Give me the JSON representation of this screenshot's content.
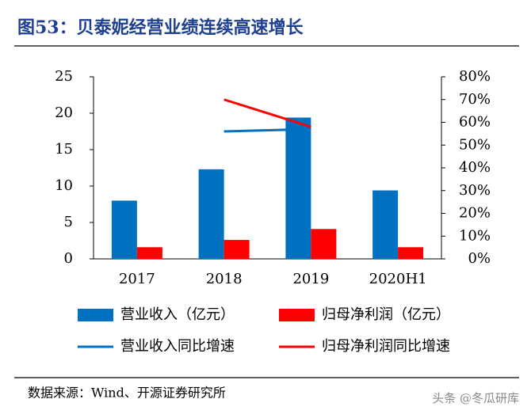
{
  "chart_data": {
    "type": "combo",
    "title": "图53：贝泰妮经营业绩连续高速增长",
    "categories": [
      "2017",
      "2018",
      "2019",
      "2020H1"
    ],
    "series": [
      {
        "name": "营业收入（亿元）",
        "type": "bar",
        "color": "#0070c0",
        "values": [
          8.0,
          12.3,
          19.4,
          9.4
        ]
      },
      {
        "name": "归母净利润（亿元）",
        "type": "bar",
        "color": "#ff0000",
        "values": [
          1.6,
          2.6,
          4.1,
          1.6
        ]
      },
      {
        "name": "营业收入同比增速",
        "type": "line",
        "axis": "y2",
        "color": "#0070c0",
        "values": [
          null,
          56,
          57,
          null
        ]
      },
      {
        "name": "归母净利润同比增速",
        "type": "line",
        "axis": "y2",
        "color": "#ff0000",
        "values": [
          null,
          70,
          58,
          null
        ]
      }
    ],
    "ylim": [
      0,
      25
    ],
    "yticks": [
      0,
      5,
      10,
      15,
      20,
      25
    ],
    "y2lim": [
      0,
      80
    ],
    "y2ticks": [
      {
        "value": 0,
        "label": "0%"
      },
      {
        "value": 10,
        "label": "10%"
      },
      {
        "value": 20,
        "label": "20%"
      },
      {
        "value": 30,
        "label": "30%"
      },
      {
        "value": 40,
        "label": "40%"
      },
      {
        "value": 50,
        "label": "50%"
      },
      {
        "value": 60,
        "label": "60%"
      },
      {
        "value": 70,
        "label": "70%"
      },
      {
        "value": 80,
        "label": "80%"
      }
    ],
    "source": "数据来源：Wind、开源证券研究所",
    "watermark": "头条 @冬瓜研库"
  }
}
